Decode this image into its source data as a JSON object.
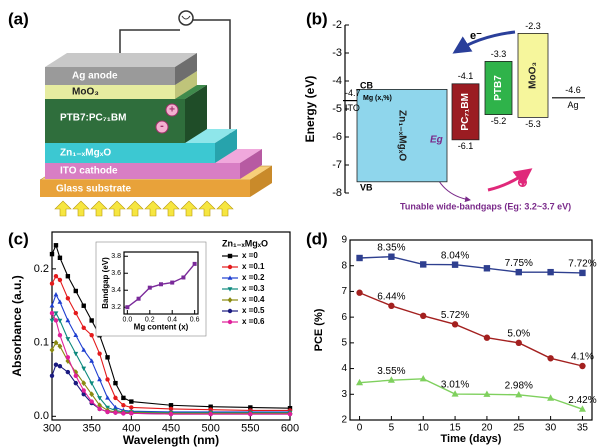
{
  "panel_labels": [
    "(a)",
    "(b)",
    "(c)",
    "(d)"
  ],
  "diagram": {
    "layers": [
      "Ag anode",
      "MoO₃",
      "PTB7:PC₇₁BM",
      "Zn₁₋ₓMgₓO",
      "ITO cathode",
      "Glass substrate"
    ],
    "charges": [
      "+",
      "-"
    ]
  },
  "chart_data": [
    {
      "type": "energy-level",
      "ylabel": "Energy (eV)",
      "ylim": [
        -8,
        -2
      ],
      "yticks": [
        -2,
        -3,
        -4,
        -5,
        -6,
        -7,
        -8
      ],
      "electrodes": [
        {
          "name": "ITO",
          "value": -4.7
        },
        {
          "name": "Ag",
          "value": -4.6
        }
      ],
      "bands": [
        {
          "name": "Zn₁₋ₓMgₓO",
          "top": -4.3,
          "bottom": -7.6,
          "color": "#8fd6ec",
          "labeled": false
        },
        {
          "name": "PC₇₁BM",
          "top": -4.1,
          "bottom": -6.1,
          "color": "#9b1c22",
          "labeled": true
        },
        {
          "name": "PTB7",
          "top": -3.3,
          "bottom": -5.2,
          "color": "#2fb34a",
          "labeled": true
        },
        {
          "name": "MoO₃",
          "top": -2.3,
          "bottom": -5.3,
          "color": "#f6f69c",
          "labeled": true
        }
      ],
      "annotations": [
        "CB",
        "VB",
        "Mg (x,%)",
        "Eg",
        "Tunable wide-bandgaps (Eg: 3.2~3.7 eV)",
        "e⁻",
        "⊕"
      ]
    },
    {
      "type": "line",
      "xlabel": "Wavelength (nm)",
      "ylabel": "Absorbance (a.u.)",
      "xlim": [
        300,
        600
      ],
      "xticks": [
        300,
        350,
        400,
        450,
        500,
        550,
        600
      ],
      "ylim": [
        -0.005,
        0.25
      ],
      "yticks": [
        {
          "value": 0,
          "label": "0.0"
        },
        0.1,
        0.2
      ],
      "legend_title": "Zn₁₋ₓMgₓO",
      "x": [
        300,
        305,
        310,
        320,
        330,
        340,
        350,
        360,
        370,
        380,
        390,
        400,
        450,
        500,
        550,
        600
      ],
      "series": [
        {
          "name": "x =0",
          "color": "#000000",
          "marker": "square",
          "values": [
            0.22,
            0.232,
            0.215,
            0.19,
            0.17,
            0.15,
            0.13,
            0.11,
            0.08,
            0.045,
            0.025,
            0.02,
            0.015,
            0.013,
            0.012,
            0.011
          ]
        },
        {
          "name": "x =0.1",
          "color": "#e41a1c",
          "marker": "circle",
          "values": [
            0.18,
            0.19,
            0.185,
            0.16,
            0.14,
            0.12,
            0.11,
            0.085,
            0.05,
            0.025,
            0.015,
            0.012,
            0.01,
            0.009,
            0.008,
            0.008
          ]
        },
        {
          "name": "x =0.2",
          "color": "#1f3fd0",
          "marker": "triangle",
          "values": [
            0.15,
            0.165,
            0.155,
            0.13,
            0.11,
            0.09,
            0.075,
            0.05,
            0.025,
            0.012,
            0.008,
            0.007,
            0.006,
            0.006,
            0.006,
            0.006
          ]
        },
        {
          "name": "x =0.3",
          "color": "#0e8a7e",
          "marker": "triangle-down",
          "values": [
            0.13,
            0.14,
            0.13,
            0.105,
            0.085,
            0.065,
            0.045,
            0.025,
            0.012,
            0.008,
            0.006,
            0.006,
            0.005,
            0.005,
            0.005,
            0.005
          ]
        },
        {
          "name": "x =0.4",
          "color": "#8a8a10",
          "marker": "diamond",
          "values": [
            0.09,
            0.1,
            0.095,
            0.075,
            0.06,
            0.045,
            0.03,
            0.015,
            0.008,
            0.006,
            0.005,
            0.005,
            0.004,
            0.004,
            0.004,
            0.004
          ]
        },
        {
          "name": "x =0.5",
          "color": "#1a1a80",
          "marker": "circle",
          "values": [
            0.055,
            0.07,
            0.068,
            0.06,
            0.045,
            0.03,
            0.018,
            0.01,
            0.006,
            0.005,
            0.004,
            0.004,
            0.003,
            0.003,
            0.003,
            0.003
          ]
        },
        {
          "name": "x =0.6",
          "color": "#e0209a",
          "marker": "circle",
          "values": [
            0.14,
            0.13,
            0.11,
            0.08,
            0.055,
            0.035,
            0.02,
            0.01,
            0.006,
            0.005,
            0.004,
            0.004,
            0.003,
            0.003,
            0.003,
            0.003
          ]
        }
      ]
    },
    {
      "type": "line",
      "xlabel": "Mg content (x)",
      "ylabel": "Bandgap (eV)",
      "xlim": [
        -0.03,
        0.63
      ],
      "xticks": [
        {
          "value": 0,
          "label": "0.0"
        },
        0.2,
        0.4,
        0.6
      ],
      "ylim": [
        3.12,
        3.85
      ],
      "yticks": [
        3.2,
        3.4,
        3.6,
        3.8
      ],
      "x": [
        0,
        0.1,
        0.2,
        0.3,
        0.4,
        0.5,
        0.6
      ],
      "series": [
        {
          "color": "#7a2a9a",
          "marker": "square",
          "values": [
            3.2,
            3.3,
            3.43,
            3.47,
            3.49,
            3.55,
            3.71
          ]
        }
      ]
    },
    {
      "type": "line",
      "xlabel": "Time (days)",
      "ylabel": "PCE (%)",
      "xlim": [
        -1.5,
        36.5
      ],
      "xticks": [
        0,
        5,
        10,
        15,
        20,
        25,
        30,
        35
      ],
      "ylim": [
        2,
        9
      ],
      "yticks": [
        2,
        3,
        4,
        5,
        6,
        7,
        8,
        9
      ],
      "x": [
        0,
        5,
        10,
        15,
        20,
        25,
        30,
        35
      ],
      "series": [
        {
          "color": "#2e3f8f",
          "marker": "square",
          "values": [
            8.3,
            8.35,
            8.05,
            8.04,
            7.9,
            7.75,
            7.75,
            7.72
          ],
          "value_labels": [
            null,
            "8.35%",
            null,
            "8.04%",
            null,
            "7.75%",
            null,
            "7.72%"
          ]
        },
        {
          "color": "#a3201f",
          "marker": "circle",
          "values": [
            6.95,
            6.44,
            6.05,
            5.72,
            5.2,
            5.0,
            4.4,
            4.1
          ],
          "value_labels": [
            null,
            "6.44%",
            null,
            "5.72%",
            null,
            "5.0%",
            null,
            "4.1%"
          ]
        },
        {
          "color": "#7fd05e",
          "marker": "triangle",
          "values": [
            3.45,
            3.55,
            3.6,
            3.01,
            3.0,
            2.98,
            2.85,
            2.42
          ],
          "value_labels": [
            null,
            "3.55%",
            null,
            "3.01%",
            null,
            "2.98%",
            null,
            "2.42%"
          ]
        }
      ]
    }
  ]
}
